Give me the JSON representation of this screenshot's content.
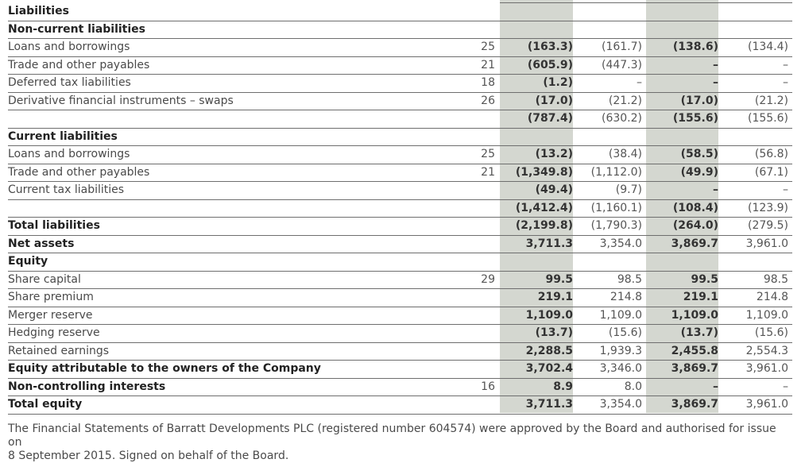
{
  "rows": [
    {
      "label": "Liabilities",
      "note": "",
      "c1": "",
      "c2": "",
      "c3": "",
      "c4": "",
      "bold": true
    },
    {
      "label": "Non-current liabilities",
      "note": "",
      "c1": "",
      "c2": "",
      "c3": "",
      "c4": "",
      "bold": true
    },
    {
      "label": "Loans and borrowings",
      "note": "25",
      "c1": "(163.3)",
      "c2": "(161.7)",
      "c3": "(138.6)",
      "c4": "(134.4)",
      "bold": false
    },
    {
      "label": "Trade and other payables",
      "note": "21",
      "c1": "(605.9)",
      "c2": "(447.3)",
      "c3": "–",
      "c4": "–",
      "bold": false
    },
    {
      "label": "Deferred tax liabilities",
      "note": "18",
      "c1": "(1.2)",
      "c2": "–",
      "c3": "–",
      "c4": "–",
      "bold": false
    },
    {
      "label": "Derivative financial instruments – swaps",
      "note": "26",
      "c1": "(17.0)",
      "c2": "(21.2)",
      "c3": "(17.0)",
      "c4": "(21.2)",
      "bold": false
    },
    {
      "label": "",
      "note": "",
      "c1": "(787.4)",
      "c2": "(630.2)",
      "c3": "(155.6)",
      "c4": "(155.6)",
      "bold": false
    },
    {
      "label": "Current liabilities",
      "note": "",
      "c1": "",
      "c2": "",
      "c3": "",
      "c4": "",
      "bold": true
    },
    {
      "label": "Loans and borrowings",
      "note": "25",
      "c1": "(13.2)",
      "c2": "(38.4)",
      "c3": "(58.5)",
      "c4": "(56.8)",
      "bold": false
    },
    {
      "label": "Trade and other payables",
      "note": "21",
      "c1": "(1,349.8)",
      "c2": "(1,112.0)",
      "c3": "(49.9)",
      "c4": "(67.1)",
      "bold": false
    },
    {
      "label": "Current tax liabilities",
      "note": "",
      "c1": "(49.4)",
      "c2": "(9.7)",
      "c3": "–",
      "c4": "–",
      "bold": false
    },
    {
      "label": "",
      "note": "",
      "c1": "(1,412.4)",
      "c2": "(1,160.1)",
      "c3": "(108.4)",
      "c4": "(123.9)",
      "bold": false
    },
    {
      "label": "Total liabilities",
      "note": "",
      "c1": "(2,199.8)",
      "c2": "(1,790.3)",
      "c3": "(264.0)",
      "c4": "(279.5)",
      "bold": true
    },
    {
      "label": "Net assets",
      "note": "",
      "c1": "3,711.3",
      "c2": "3,354.0",
      "c3": "3,869.7",
      "c4": "3,961.0",
      "bold": true
    },
    {
      "label": "Equity",
      "note": "",
      "c1": "",
      "c2": "",
      "c3": "",
      "c4": "",
      "bold": true
    },
    {
      "label": "Share capital",
      "note": "29",
      "c1": "99.5",
      "c2": "98.5",
      "c3": "99.5",
      "c4": "98.5",
      "bold": false
    },
    {
      "label": "Share premium",
      "note": "",
      "c1": "219.1",
      "c2": "214.8",
      "c3": "219.1",
      "c4": "214.8",
      "bold": false
    },
    {
      "label": "Merger reserve",
      "note": "",
      "c1": "1,109.0",
      "c2": "1,109.0",
      "c3": "1,109.0",
      "c4": "1,109.0",
      "bold": false
    },
    {
      "label": "Hedging reserve",
      "note": "",
      "c1": "(13.7)",
      "c2": "(15.6)",
      "c3": "(13.7)",
      "c4": "(15.6)",
      "bold": false
    },
    {
      "label": "Retained earnings",
      "note": "",
      "c1": "2,288.5",
      "c2": "1,939.3",
      "c3": "2,455.8",
      "c4": "2,554.3",
      "bold": false
    },
    {
      "label": "Equity attributable to the owners of the Company",
      "note": "",
      "c1": "3,702.4",
      "c2": "3,346.0",
      "c3": "3,869.7",
      "c4": "3,961.0",
      "bold": true
    },
    {
      "label": "Non-controlling interests",
      "note": "16",
      "c1": "8.9",
      "c2": "8.0",
      "c3": "–",
      "c4": "–",
      "bold": true
    },
    {
      "label": "Total equity",
      "note": "",
      "c1": "3,711.3",
      "c2": "3,354.0",
      "c3": "3,869.7",
      "c4": "3,961.0",
      "bold": true
    }
  ],
  "footer": {
    "line1": "The Financial Statements of Barratt Developments PLC (registered number 604574) were approved by the Board and authorised for issue on",
    "line2": "8 September 2015. Signed on behalf of the Board."
  }
}
